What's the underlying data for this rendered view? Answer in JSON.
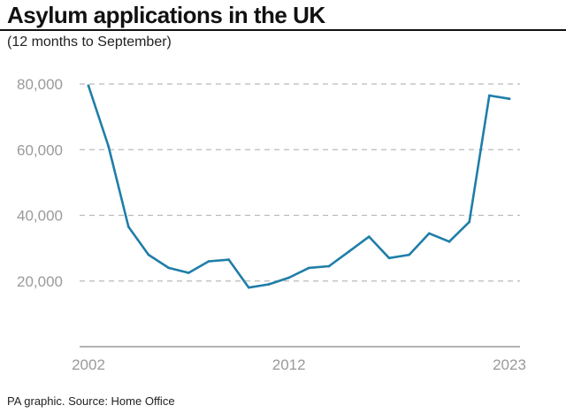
{
  "header": {
    "title": "Asylum applications in the UK",
    "subtitle": "(12 months to September)"
  },
  "footer": {
    "source": "PA graphic. Source: Home Office"
  },
  "chart_data": {
    "type": "line",
    "title": "Asylum applications in the UK",
    "subtitle": "(12 months to September)",
    "xlabel": "",
    "ylabel": "",
    "x": [
      2002,
      2003,
      2004,
      2005,
      2006,
      2007,
      2008,
      2009,
      2010,
      2011,
      2012,
      2013,
      2014,
      2015,
      2016,
      2017,
      2018,
      2019,
      2020,
      2021,
      2022,
      2023
    ],
    "series": [
      {
        "values": [
          79500,
          61000,
          36500,
          28000,
          24000,
          22500,
          26000,
          26500,
          18000,
          19000,
          21000,
          24000,
          24500,
          29000,
          33500,
          27000,
          28000,
          34500,
          32000,
          38000,
          76500,
          75500
        ],
        "color": "#1f7ea8"
      }
    ],
    "xlim": [
      2002,
      2023
    ],
    "ylim": [
      0,
      80000
    ],
    "y_ticks": [
      80000,
      60000,
      40000,
      20000
    ],
    "y_tick_labels": [
      "80,000",
      "60,000",
      "40,000",
      "20,000"
    ],
    "x_tick_labels": [
      "2002",
      "2012",
      "2023"
    ],
    "x_tick_values": [
      2002,
      2012,
      2023
    ],
    "grid": "dashed horizontal",
    "colors": {
      "line": "#1f7ea8",
      "grid": "#bbbbbb",
      "axis_text": "#9a9a9a",
      "axis": "#888888",
      "marker_dot": "#cfcfcf"
    }
  }
}
